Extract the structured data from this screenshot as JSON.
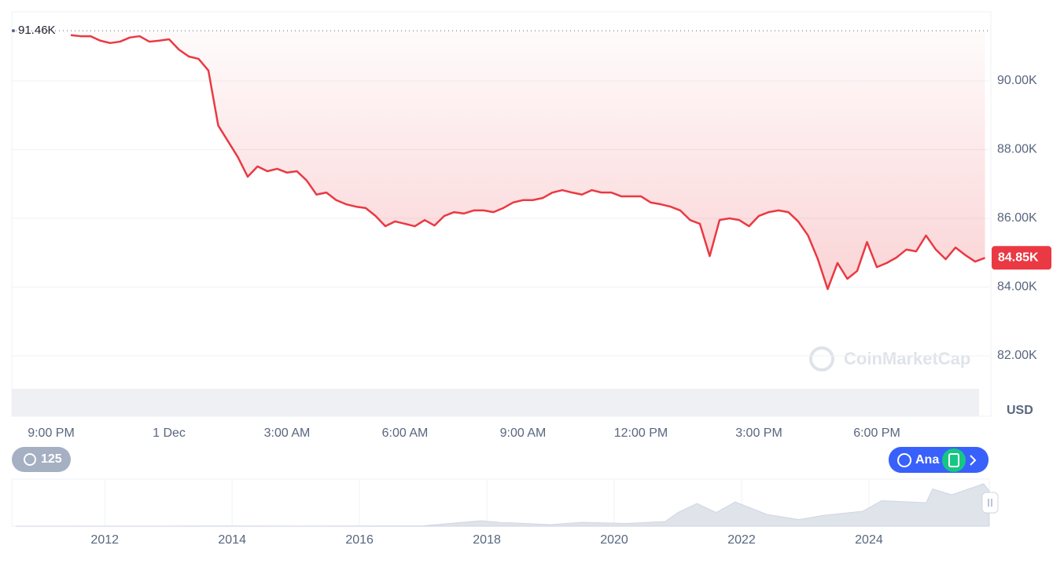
{
  "chart_data": [
    {
      "type": "line",
      "categories": [
        "9:00 PM",
        null,
        null,
        null,
        null,
        null,
        null,
        null,
        null,
        null,
        null,
        null,
        "1 Dec",
        null,
        null,
        null,
        null,
        null,
        null,
        null,
        null,
        null,
        null,
        null,
        "3:00 AM",
        null,
        null,
        null,
        null,
        null,
        null,
        null,
        null,
        null,
        null,
        null,
        "6:00 AM",
        null,
        null,
        null,
        null,
        null,
        null,
        null,
        null,
        null,
        null,
        null,
        "9:00 AM",
        null,
        null,
        null,
        null,
        null,
        null,
        null,
        null,
        null,
        null,
        null,
        "12:00 PM",
        null,
        null,
        null,
        null,
        null,
        null,
        null,
        null,
        null,
        null,
        null,
        "3:00 PM",
        null,
        null,
        null,
        null,
        null,
        null,
        null,
        null,
        null,
        null,
        null,
        "6:00 PM",
        null,
        null,
        null,
        null,
        null,
        null,
        null,
        null,
        null,
        null,
        null
      ],
      "values": [
        null,
        null,
        91.33,
        91.3,
        91.3,
        91.17,
        91.1,
        91.14,
        91.26,
        91.3,
        91.14,
        91.17,
        91.21,
        90.91,
        90.71,
        90.64,
        90.3,
        88.7,
        88.24,
        87.78,
        87.21,
        87.51,
        87.37,
        87.44,
        87.33,
        87.37,
        87.1,
        86.69,
        86.75,
        86.53,
        86.41,
        86.34,
        86.3,
        86.07,
        85.77,
        85.91,
        85.84,
        85.77,
        85.95,
        85.79,
        86.07,
        86.18,
        86.14,
        86.23,
        86.23,
        86.18,
        86.3,
        86.46,
        86.53,
        86.53,
        86.59,
        86.75,
        86.82,
        86.75,
        86.69,
        86.82,
        86.75,
        86.75,
        86.64,
        86.64,
        86.64,
        86.46,
        86.41,
        86.34,
        86.23,
        85.95,
        85.84,
        84.9,
        85.95,
        86.0,
        85.95,
        85.77,
        86.07,
        86.18,
        86.23,
        86.18,
        85.91,
        85.5,
        84.81,
        83.94,
        84.7,
        84.24,
        84.47,
        85.31,
        84.58,
        84.7,
        84.86,
        85.09,
        85.04,
        85.5,
        85.09,
        84.81,
        85.15,
        84.93,
        84.74,
        84.85
      ],
      "color": "#ea3943",
      "ylim": [
        80.24,
        92.01
      ],
      "yticks": [
        {
          "value": 82,
          "label": "82.00K"
        },
        {
          "value": 84,
          "label": "84.00K"
        },
        {
          "value": 86,
          "label": "86.00K"
        },
        {
          "value": 88,
          "label": "88.00K"
        },
        {
          "value": 90,
          "label": "90.00K"
        }
      ],
      "y_unit": "USD",
      "grid": true,
      "annotations": [
        {
          "value": 91.46,
          "label": "91.46K"
        },
        {
          "value": 84.85,
          "label": "84.85K"
        }
      ]
    },
    {
      "type": "area",
      "x": [
        2010.6,
        2013.0,
        2014.0,
        2015.0,
        2016.0,
        2017.0,
        2017.9,
        2018.2,
        2019.0,
        2019.5,
        2020.2,
        2020.8,
        2021.0,
        2021.3,
        2021.6,
        2021.9,
        2022.4,
        2022.9,
        2023.3,
        2023.9,
        2024.2,
        2024.9,
        2025.0,
        2025.3,
        2025.8,
        2025.89
      ],
      "values": [
        0,
        0.3,
        0.6,
        0.3,
        0.4,
        1,
        14,
        10,
        4,
        10,
        7,
        12,
        35,
        58,
        35,
        62,
        30,
        17,
        28,
        38,
        65,
        60,
        95,
        80,
        108,
        90
      ],
      "color": "#dfe3ea",
      "xlim": [
        2010.54,
        2025.89
      ],
      "ylim": [
        0,
        110
      ],
      "xticks": [
        2012,
        2014,
        2016,
        2018,
        2020,
        2022,
        2024
      ]
    }
  ],
  "ui": {
    "watermark": "CoinMarketCap",
    "history_count": "125",
    "analysis_button": "Ana"
  }
}
